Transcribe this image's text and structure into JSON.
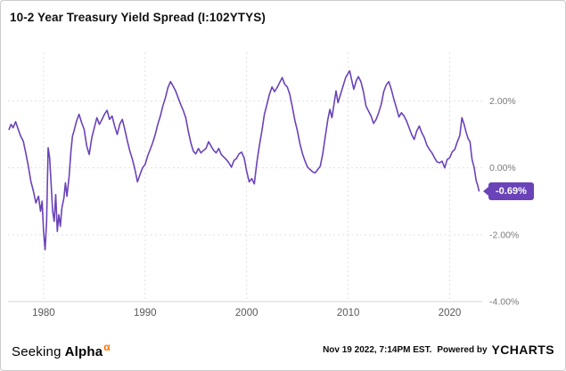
{
  "colors": {
    "line": "#6a43b8",
    "badge_bg": "#6a43b8",
    "grid": "#e0e0e0",
    "axis_line": "#d6d6d6",
    "y_tick_text": "#7a7a7a",
    "x_tick_text": "#595959",
    "title_text": "#111111",
    "brand_orange": "#ff7200"
  },
  "footer": {
    "brand": {
      "seeking": "Seeking",
      "alpha": "Alpha",
      "alpha_symbol": "α"
    },
    "timestamp": "Nov 19 2022, 7:14PM EST.",
    "powered_by": "Powered by",
    "ycharts": "YCHARTS"
  },
  "chart_data": {
    "type": "line",
    "title": "10-2 Year Treasury Yield Spread (I:102YTYS)",
    "series_name": "10-2 Year Treasury Yield Spread",
    "last_value_label": "-0.69%",
    "last_value": -0.69,
    "x_range": [
      1976.5,
      2023.2
    ],
    "y_range": [
      -4.0,
      3.45
    ],
    "grid": true,
    "legend": "none",
    "y_ticks": [
      {
        "value": 2,
        "label": "2.00%"
      },
      {
        "value": 0,
        "label": "0.00%"
      },
      {
        "value": -2,
        "label": "-2.00%"
      },
      {
        "value": -4,
        "label": "-4.00%"
      }
    ],
    "x_ticks": [
      {
        "value": 1980,
        "label": "1980"
      },
      {
        "value": 1990,
        "label": "1990"
      },
      {
        "value": 2000,
        "label": "2000"
      },
      {
        "value": 2010,
        "label": "2010"
      },
      {
        "value": 2020,
        "label": "2020"
      }
    ],
    "points": [
      [
        1976.6,
        1.15
      ],
      [
        1976.8,
        1.3
      ],
      [
        1977,
        1.2
      ],
      [
        1977.25,
        1.38
      ],
      [
        1977.5,
        1.15
      ],
      [
        1977.75,
        0.95
      ],
      [
        1978,
        0.8
      ],
      [
        1978.25,
        0.45
      ],
      [
        1978.5,
        0.05
      ],
      [
        1978.75,
        -0.4
      ],
      [
        1979,
        -0.7
      ],
      [
        1979.25,
        -1.05
      ],
      [
        1979.5,
        -0.85
      ],
      [
        1979.7,
        -1.3
      ],
      [
        1979.85,
        -1.0
      ],
      [
        1980,
        -1.9
      ],
      [
        1980.15,
        -2.45
      ],
      [
        1980.3,
        -1.6
      ],
      [
        1980.45,
        0.6
      ],
      [
        1980.6,
        0.3
      ],
      [
        1980.75,
        -0.5
      ],
      [
        1980.9,
        -1.3
      ],
      [
        1981.05,
        -1.6
      ],
      [
        1981.2,
        -0.8
      ],
      [
        1981.35,
        -1.9
      ],
      [
        1981.5,
        -1.4
      ],
      [
        1981.65,
        -1.75
      ],
      [
        1981.8,
        -1.2
      ],
      [
        1982,
        -0.9
      ],
      [
        1982.15,
        -0.45
      ],
      [
        1982.3,
        -0.85
      ],
      [
        1982.5,
        -0.3
      ],
      [
        1982.7,
        0.5
      ],
      [
        1982.85,
        0.95
      ],
      [
        1983,
        1.1
      ],
      [
        1983.25,
        1.4
      ],
      [
        1983.5,
        1.6
      ],
      [
        1983.75,
        1.35
      ],
      [
        1984,
        1.15
      ],
      [
        1984.25,
        0.65
      ],
      [
        1984.5,
        0.4
      ],
      [
        1984.75,
        0.9
      ],
      [
        1985,
        1.2
      ],
      [
        1985.25,
        1.5
      ],
      [
        1985.5,
        1.3
      ],
      [
        1985.75,
        1.45
      ],
      [
        1986,
        1.6
      ],
      [
        1986.25,
        1.72
      ],
      [
        1986.5,
        1.45
      ],
      [
        1986.75,
        1.55
      ],
      [
        1987,
        1.25
      ],
      [
        1987.25,
        1.0
      ],
      [
        1987.5,
        1.3
      ],
      [
        1987.75,
        1.45
      ],
      [
        1988,
        1.15
      ],
      [
        1988.25,
        0.8
      ],
      [
        1988.5,
        0.5
      ],
      [
        1988.75,
        0.25
      ],
      [
        1989,
        -0.05
      ],
      [
        1989.25,
        -0.42
      ],
      [
        1989.5,
        -0.2
      ],
      [
        1989.75,
        0.0
      ],
      [
        1990,
        0.1
      ],
      [
        1990.25,
        0.35
      ],
      [
        1990.5,
        0.55
      ],
      [
        1990.75,
        0.75
      ],
      [
        1991,
        1.0
      ],
      [
        1991.25,
        1.3
      ],
      [
        1991.5,
        1.55
      ],
      [
        1991.75,
        1.85
      ],
      [
        1992,
        2.1
      ],
      [
        1992.25,
        2.4
      ],
      [
        1992.5,
        2.58
      ],
      [
        1992.75,
        2.45
      ],
      [
        1993,
        2.3
      ],
      [
        1993.25,
        2.1
      ],
      [
        1993.5,
        1.9
      ],
      [
        1993.75,
        1.72
      ],
      [
        1994,
        1.5
      ],
      [
        1994.25,
        1.1
      ],
      [
        1994.5,
        0.75
      ],
      [
        1994.75,
        0.5
      ],
      [
        1995,
        0.42
      ],
      [
        1995.25,
        0.58
      ],
      [
        1995.5,
        0.45
      ],
      [
        1995.75,
        0.52
      ],
      [
        1996,
        0.58
      ],
      [
        1996.25,
        0.78
      ],
      [
        1996.5,
        0.65
      ],
      [
        1996.75,
        0.52
      ],
      [
        1997,
        0.45
      ],
      [
        1997.25,
        0.58
      ],
      [
        1997.5,
        0.4
      ],
      [
        1997.75,
        0.32
      ],
      [
        1998,
        0.25
      ],
      [
        1998.25,
        0.15
      ],
      [
        1998.5,
        0.02
      ],
      [
        1998.75,
        0.22
      ],
      [
        1999,
        0.28
      ],
      [
        1999.25,
        0.42
      ],
      [
        1999.5,
        0.47
      ],
      [
        1999.75,
        0.3
      ],
      [
        2000,
        -0.1
      ],
      [
        2000.25,
        -0.42
      ],
      [
        2000.5,
        -0.32
      ],
      [
        2000.75,
        -0.48
      ],
      [
        2001,
        0.15
      ],
      [
        2001.25,
        0.65
      ],
      [
        2001.5,
        1.1
      ],
      [
        2001.75,
        1.6
      ],
      [
        2002,
        1.9
      ],
      [
        2002.25,
        2.2
      ],
      [
        2002.5,
        2.42
      ],
      [
        2002.75,
        2.28
      ],
      [
        2003,
        2.4
      ],
      [
        2003.25,
        2.55
      ],
      [
        2003.5,
        2.7
      ],
      [
        2003.75,
        2.5
      ],
      [
        2004,
        2.42
      ],
      [
        2004.25,
        2.2
      ],
      [
        2004.5,
        1.82
      ],
      [
        2004.75,
        1.42
      ],
      [
        2005,
        1.1
      ],
      [
        2005.25,
        0.72
      ],
      [
        2005.5,
        0.42
      ],
      [
        2005.75,
        0.2
      ],
      [
        2006,
        0.02
      ],
      [
        2006.25,
        -0.05
      ],
      [
        2006.5,
        -0.12
      ],
      [
        2006.75,
        -0.15
      ],
      [
        2007,
        -0.05
      ],
      [
        2007.25,
        0.05
      ],
      [
        2007.5,
        0.42
      ],
      [
        2007.75,
        0.95
      ],
      [
        2008,
        1.45
      ],
      [
        2008.2,
        1.75
      ],
      [
        2008.4,
        1.5
      ],
      [
        2008.6,
        1.9
      ],
      [
        2008.8,
        2.3
      ],
      [
        2009,
        1.95
      ],
      [
        2009.25,
        2.2
      ],
      [
        2009.5,
        2.45
      ],
      [
        2009.75,
        2.7
      ],
      [
        2010,
        2.83
      ],
      [
        2010.15,
        2.9
      ],
      [
        2010.35,
        2.62
      ],
      [
        2010.55,
        2.35
      ],
      [
        2010.8,
        2.6
      ],
      [
        2011,
        2.73
      ],
      [
        2011.25,
        2.58
      ],
      [
        2011.5,
        2.28
      ],
      [
        2011.75,
        1.85
      ],
      [
        2012,
        1.7
      ],
      [
        2012.25,
        1.55
      ],
      [
        2012.5,
        1.33
      ],
      [
        2012.75,
        1.45
      ],
      [
        2013,
        1.65
      ],
      [
        2013.25,
        1.9
      ],
      [
        2013.5,
        2.28
      ],
      [
        2013.75,
        2.48
      ],
      [
        2014,
        2.58
      ],
      [
        2014.25,
        2.35
      ],
      [
        2014.5,
        2.05
      ],
      [
        2014.75,
        1.8
      ],
      [
        2015,
        1.52
      ],
      [
        2015.25,
        1.65
      ],
      [
        2015.5,
        1.55
      ],
      [
        2015.75,
        1.4
      ],
      [
        2016,
        1.2
      ],
      [
        2016.25,
        1.0
      ],
      [
        2016.5,
        0.85
      ],
      [
        2016.75,
        1.1
      ],
      [
        2017,
        1.25
      ],
      [
        2017.25,
        1.05
      ],
      [
        2017.5,
        0.9
      ],
      [
        2017.75,
        0.68
      ],
      [
        2018,
        0.55
      ],
      [
        2018.25,
        0.45
      ],
      [
        2018.5,
        0.3
      ],
      [
        2018.75,
        0.18
      ],
      [
        2019,
        0.15
      ],
      [
        2019.25,
        0.2
      ],
      [
        2019.5,
        0.0
      ],
      [
        2019.75,
        0.25
      ],
      [
        2020,
        0.3
      ],
      [
        2020.25,
        0.48
      ],
      [
        2020.5,
        0.55
      ],
      [
        2020.75,
        0.78
      ],
      [
        2021,
        0.97
      ],
      [
        2021.2,
        1.5
      ],
      [
        2021.4,
        1.32
      ],
      [
        2021.6,
        1.08
      ],
      [
        2021.8,
        0.88
      ],
      [
        2022,
        0.78
      ],
      [
        2022.2,
        0.25
      ],
      [
        2022.4,
        0.02
      ],
      [
        2022.6,
        -0.38
      ],
      [
        2022.75,
        -0.52
      ],
      [
        2022.88,
        -0.69
      ]
    ]
  }
}
